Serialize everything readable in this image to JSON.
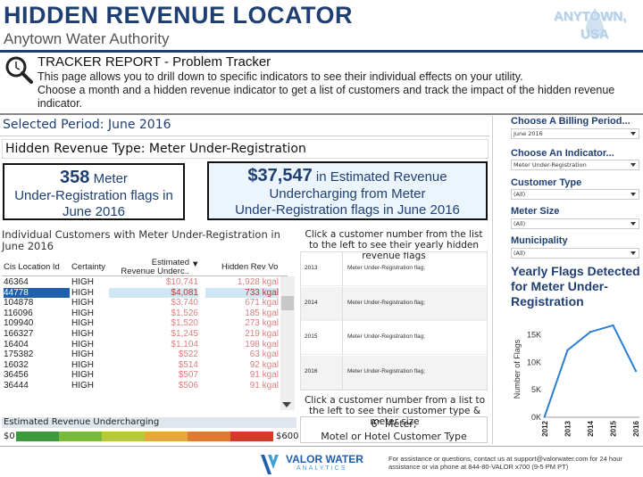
{
  "header": {
    "title": "HIDDEN REVENUE LOCATOR",
    "org": "Anytown Water Authority",
    "logo_line1": "ANYTOWN,",
    "logo_line2": "USA"
  },
  "tracker": {
    "title": "TRACKER REPORT - Problem Tracker",
    "desc1": "This page allows you to drill down to specific indicators to see their individual effects on your utility.",
    "desc2": "Choose a month and a hidden revenue indicator to get a list of customers and track the impact of the hidden revenue indicator."
  },
  "selected_period": "Selected Period: June 2016",
  "hidden_revenue_type": "Hidden Revenue Type: Meter Under-Registration",
  "kpi_flags": {
    "count": "358",
    "unit": " Meter",
    "line2": "Under-Registration flags in",
    "line3": "June 2016"
  },
  "kpi_revenue": {
    "amount": "$37,547",
    "suffix": " in Estimated Revenue",
    "line2": "Undercharging from Meter",
    "line3": "Under-Registration flags in June 2016"
  },
  "customers": {
    "title": "Individual Customers with Meter Under-Registration in June 2016",
    "headers": {
      "id": "Cis Location Id",
      "certainty": "Certainty",
      "est": "Estimated Revenue Underc..",
      "rev": "Hidden Rev Vo"
    },
    "rows": [
      {
        "id": "46364",
        "certainty": "HIGH",
        "est": "$10,741",
        "rev": "1,928 kgal"
      },
      {
        "id": "44778",
        "certainty": "HIGH",
        "est": "$4,081",
        "rev": "733 kgal"
      },
      {
        "id": "104878",
        "certainty": "HIGH",
        "est": "$3,740",
        "rev": "671 kgal"
      },
      {
        "id": "116096",
        "certainty": "HIGH",
        "est": "$1,526",
        "rev": "185 kgal"
      },
      {
        "id": "109940",
        "certainty": "HIGH",
        "est": "$1,520",
        "rev": "273 kgal"
      },
      {
        "id": "166327",
        "certainty": "HIGH",
        "est": "$1,245",
        "rev": "219 kgal"
      },
      {
        "id": "16404",
        "certainty": "HIGH",
        "est": "$1,104",
        "rev": "198 kgal"
      },
      {
        "id": "175382",
        "certainty": "HIGH",
        "est": "$522",
        "rev": "63 kgal"
      },
      {
        "id": "16032",
        "certainty": "HIGH",
        "est": "$514",
        "rev": "92 kgal"
      },
      {
        "id": "36456",
        "certainty": "HIGH",
        "est": "$507",
        "rev": "91 kgal"
      },
      {
        "id": "36444",
        "certainty": "HIGH",
        "est": "$506",
        "rev": "91 kgal"
      }
    ]
  },
  "legend": {
    "title": "Estimated Revenue Undercharging",
    "min": "$0",
    "max": "$600",
    "colors": [
      "#3c9a3c",
      "#7bb93a",
      "#b5c93a",
      "#e6a83a",
      "#e07a2e",
      "#d43a2a"
    ]
  },
  "flags_instruction": "Click a customer number from the list to the left to see their yearly hidden revenue flags",
  "yearly_flags": [
    {
      "year": "2013",
      "label": "Meter Under-Registration flag;"
    },
    {
      "year": "2014",
      "label": "Meter Under-Registration flag;"
    },
    {
      "year": "2015",
      "label": "Meter Under-Registration flag;"
    },
    {
      "year": "2016",
      "label": "Meter Under-Registration flag;"
    }
  ],
  "details_instruction": "Click a customer number from a list to the left to see their customer type & meter size",
  "details": {
    "line1": "6\" Meter;",
    "line2": "Motel or Hotel Customer Type"
  },
  "filters": {
    "billing_period_label": "Choose A Billing Period...",
    "billing_period_value": "June 2016",
    "indicator_label": "Choose An Indicator...",
    "indicator_value": "Meter Under-Registration",
    "customer_type_label": "Customer Type",
    "customer_type_value": "(All)",
    "meter_size_label": "Meter Size",
    "meter_size_value": "(All)",
    "municipality_label": "Municipality",
    "municipality_value": "(All)"
  },
  "chart_data": {
    "type": "line",
    "title": "Yearly Flags Detected for Meter Under-Registration",
    "xlabel": "",
    "ylabel": "Number of Flags",
    "x": [
      "2012",
      "2013",
      "2014",
      "2015",
      "2016"
    ],
    "y": [
      200,
      12200,
      15500,
      16700,
      8400
    ],
    "yticks": [
      "0K",
      "5K",
      "10K",
      "15K"
    ],
    "ylim": [
      0,
      17500
    ],
    "color": "#2a7fd4"
  },
  "footer": {
    "brand": "VALOR WATER",
    "brand_sub": "ANALYTICS",
    "help": "For assistance or questions, contact us at support@valorwater.com for 24 hour assistance or via phone at 844-80-VALOR x700 (9-5 PM PT)"
  }
}
